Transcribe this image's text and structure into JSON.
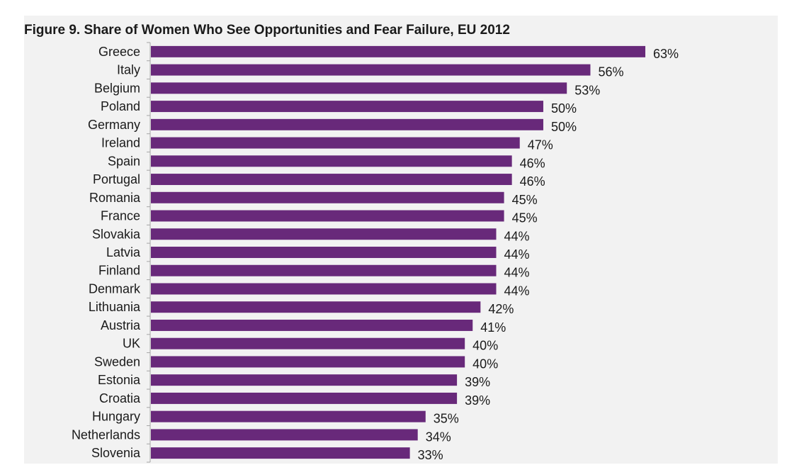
{
  "chart_data": {
    "type": "bar",
    "orientation": "horizontal",
    "title": "Figure 9. Share of Women Who See Opportunities and Fear Failure, EU 2012",
    "categories": [
      "Greece",
      "Italy",
      "Belgium",
      "Poland",
      "Germany",
      "Ireland",
      "Spain",
      "Portugal",
      "Romania",
      "France",
      "Slovakia",
      "Latvia",
      "Finland",
      "Denmark",
      "Lithuania",
      "Austria",
      "UK",
      "Sweden",
      "Estonia",
      "Croatia",
      "Hungary",
      "Netherlands",
      "Slovenia"
    ],
    "values": [
      63,
      56,
      53,
      50,
      50,
      47,
      46,
      46,
      45,
      45,
      44,
      44,
      44,
      44,
      42,
      41,
      40,
      40,
      39,
      39,
      35,
      34,
      33
    ],
    "data_labels": [
      "63%",
      "56%",
      "53%",
      "50%",
      "50%",
      "47%",
      "46%",
      "46%",
      "45%",
      "45%",
      "44%",
      "44%",
      "44%",
      "44%",
      "42%",
      "41%",
      "40%",
      "40%",
      "39%",
      "39%",
      "35%",
      "34%",
      "33%"
    ],
    "xlim": [
      0,
      70
    ],
    "grid": false,
    "bar_color": "#68297a",
    "axis_color": "#a6a6a6"
  }
}
